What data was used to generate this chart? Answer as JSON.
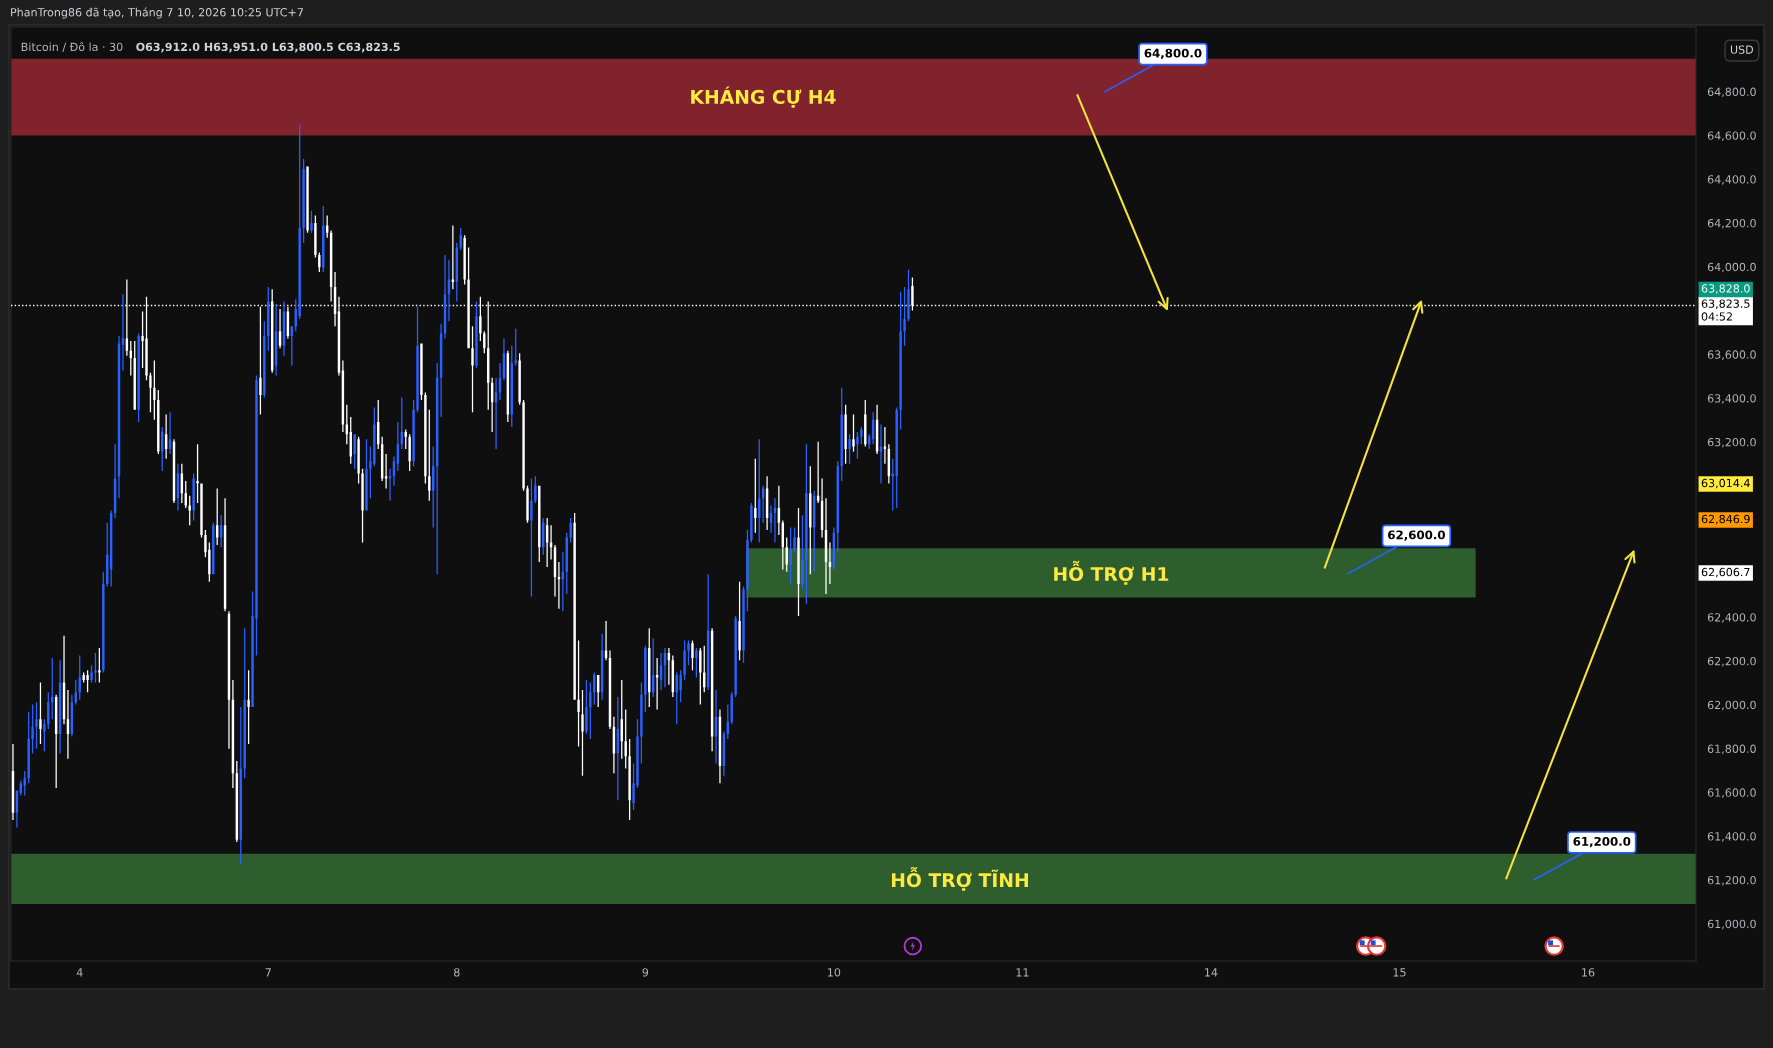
{
  "chart_data": {
    "type": "candlestick",
    "title": "Bitcoin / Đô la · 30",
    "subtitle": "O63,912.0 H63,951.0 L63,800.5 C63,823.5",
    "ylabel": "USD",
    "annotations": [
      "PhanTrong86 đã tạo, Tháng 7 10, 2026 10:25 UTC+7",
      "64,800.0",
      "62,600.0",
      "61,200.0",
      "63,828.0",
      "63,014.4",
      "62,846.9",
      "62,606.7"
    ],
    "ylim": [
      60830,
      65095
    ],
    "yticks": [
      {
        "value": 61000,
        "label": "61,000.0"
      },
      {
        "value": 61200,
        "label": "61,200.0"
      },
      {
        "value": 61400,
        "label": "61,400.0"
      },
      {
        "value": 61600,
        "label": "61,600.0"
      },
      {
        "value": 61800,
        "label": "61,800.0"
      },
      {
        "value": 62000,
        "label": "62,000.0"
      },
      {
        "value": 62200,
        "label": "62,200.0"
      },
      {
        "value": 62400,
        "label": "62,400.0"
      },
      {
        "value": 63200,
        "label": "63,200.0"
      },
      {
        "value": 63400,
        "label": "63,400.0"
      },
      {
        "value": 63600,
        "label": "63,600.0"
      },
      {
        "value": 64000,
        "label": "64,000.0"
      },
      {
        "value": 64200,
        "label": "64,200.0"
      },
      {
        "value": 64400,
        "label": "64,400.0"
      },
      {
        "value": 64600,
        "label": "64,600.0"
      },
      {
        "value": 64800,
        "label": "64,800.0"
      }
    ],
    "bands": [
      {
        "axis": "y",
        "from": 64600,
        "to": 64950,
        "color": "#80232c",
        "label": "KHÁNG CỰ H4"
      },
      {
        "axis": "y",
        "from": 62490,
        "to": 62715,
        "color": "#2e5e2e",
        "label": "HỖ TRỢ H1"
      },
      {
        "axis": "y",
        "from": 61090,
        "to": 61320,
        "color": "#2e5e2e",
        "label": "HỖ TRỢ TĨNH"
      }
    ],
    "ref_lines": [
      {
        "axis": "y",
        "value": 63823.5,
        "label": "63,823.5\n04:52",
        "color": "#ffffff",
        "line_style": "dotted"
      }
    ],
    "categories": [
      null,
      null,
      null,
      null,
      null,
      null,
      null,
      null,
      null,
      null,
      null,
      null,
      null,
      null,
      null,
      null,
      null,
      "4",
      null,
      null,
      null,
      null,
      null,
      null,
      null,
      null,
      null,
      null,
      null,
      null,
      null,
      null,
      null,
      null,
      null,
      null,
      null,
      null,
      null,
      null,
      null,
      null,
      null,
      null,
      null,
      null,
      null,
      null,
      null,
      null,
      null,
      null,
      null,
      null,
      null,
      null,
      null,
      null,
      null,
      null,
      null,
      null,
      null,
      null,
      null,
      "7",
      null,
      null,
      null,
      null,
      null,
      null,
      null,
      null,
      null,
      null,
      null,
      null,
      null,
      null,
      null,
      null,
      null,
      null,
      null,
      null,
      null,
      null,
      null,
      null,
      null,
      null,
      null,
      null,
      null,
      null,
      null,
      null,
      null,
      null,
      null,
      null,
      null,
      null,
      null,
      null,
      null,
      null,
      null,
      null,
      null,
      null,
      null,
      "8",
      null,
      null,
      null,
      null,
      null,
      null,
      null,
      null,
      null,
      null,
      null,
      null,
      null,
      null,
      null,
      null,
      null,
      null,
      null,
      null,
      null,
      null,
      null,
      null,
      null,
      null,
      null,
      null,
      null,
      null,
      null,
      null,
      null,
      null,
      null,
      null,
      null,
      null,
      null,
      null,
      null,
      null,
      null,
      null,
      null,
      null,
      null,
      "9",
      null,
      null,
      null,
      null,
      null,
      null,
      null,
      null,
      null,
      null,
      null,
      null,
      null,
      null,
      null,
      null,
      null,
      null,
      null,
      null,
      null,
      null,
      null,
      null,
      null,
      null,
      null,
      null,
      null,
      null,
      null,
      null,
      null,
      null,
      null,
      null,
      null,
      null,
      null,
      null,
      null,
      null,
      null,
      null,
      null,
      null,
      null,
      "10",
      null,
      null,
      null,
      null,
      null,
      null,
      null,
      null,
      null,
      null,
      null,
      null,
      null,
      null,
      null,
      null,
      null,
      null,
      null,
      null,
      null,
      null,
      null,
      null,
      null,
      null,
      null,
      null,
      null,
      null,
      null,
      null,
      null,
      null,
      null,
      null,
      null,
      null,
      null,
      null,
      null,
      null,
      null,
      null,
      null,
      null,
      null,
      "11",
      null,
      null,
      null,
      null,
      null,
      null,
      null,
      null,
      null,
      null,
      null,
      null,
      null,
      null,
      null,
      null,
      null,
      null,
      null,
      null,
      null,
      null,
      null,
      null,
      null,
      null,
      null,
      null,
      null,
      null,
      null,
      null,
      null,
      null,
      null,
      null,
      null,
      null,
      null,
      null,
      null,
      null,
      null,
      null,
      null,
      null,
      null,
      "14",
      null,
      null,
      null,
      null,
      null,
      null,
      null,
      null,
      null,
      null,
      null,
      null,
      null,
      null,
      null,
      null,
      null,
      null,
      null,
      null,
      null,
      null,
      null,
      null,
      null,
      null,
      null,
      null,
      null,
      null,
      null,
      null,
      null,
      null,
      null,
      null,
      null,
      null,
      null,
      null,
      null,
      null,
      null,
      null,
      null,
      null,
      null,
      "15",
      null,
      null,
      null,
      null,
      null,
      null,
      null,
      null,
      null,
      null,
      null,
      null,
      null,
      null,
      null,
      null,
      null,
      null,
      null,
      null,
      null,
      null,
      null,
      null,
      null,
      null,
      null,
      null,
      null,
      null,
      null,
      null,
      null,
      null,
      null,
      null,
      null,
      null,
      null,
      null,
      null,
      null,
      null,
      null,
      null,
      null,
      null,
      "16",
      null,
      null,
      null,
      null,
      null,
      null,
      null,
      null,
      null,
      null,
      null,
      null,
      null,
      null,
      null,
      null,
      null,
      null,
      null,
      null,
      null,
      null,
      null,
      null,
      null,
      null,
      null
    ],
    "ohlc": [
      [
        61698,
        61821,
        61474,
        61507
      ],
      [
        61507,
        61608,
        61440,
        61608
      ],
      [
        61597,
        61653,
        61586,
        61642
      ],
      [
        61631,
        61698,
        61586,
        61664
      ],
      [
        61664,
        61967,
        61642,
        61844
      ],
      [
        61844,
        62001,
        61777,
        61900
      ],
      [
        61900,
        62012,
        61799,
        61934
      ],
      [
        61934,
        62102,
        61821,
        61889
      ],
      [
        61878,
        61934,
        61788,
        61911
      ],
      [
        61911,
        62057,
        61889,
        62012
      ],
      [
        62012,
        62214,
        61934,
        62035
      ],
      [
        62035,
        62046,
        61620,
        61866
      ],
      [
        61866,
        62203,
        61777,
        62102
      ],
      [
        62102,
        62315,
        61911,
        61934
      ],
      [
        61934,
        62068,
        61754,
        61866
      ],
      [
        61866,
        62046,
        61855,
        62012
      ],
      [
        62012,
        62113,
        62001,
        62057
      ],
      [
        62057,
        62225,
        62023,
        62124
      ],
      [
        62136,
        62147,
        62102,
        62113
      ],
      [
        62136,
        62158,
        62057,
        62113
      ],
      [
        62113,
        62181,
        62102,
        62147
      ],
      [
        62147,
        62237,
        62102,
        62158
      ],
      [
        62158,
        62259,
        62102,
        62147
      ],
      [
        62158,
        62607,
        62147,
        62551
      ],
      [
        62551,
        62831,
        62540,
        62685
      ],
      [
        62618,
        62887,
        62540,
        62876
      ],
      [
        62876,
        63190,
        62853,
        63033
      ],
      [
        63044,
        63684,
        62943,
        63650
      ],
      [
        63644,
        63875,
        63527,
        63673
      ],
      [
        63673,
        63942,
        63594,
        63617
      ],
      [
        63617,
        63661,
        63504,
        63583
      ],
      [
        63583,
        63661,
        63347,
        63347
      ],
      [
        63347,
        63695,
        63291,
        63684
      ],
      [
        63684,
        63796,
        63538,
        63661
      ],
      [
        63673,
        63863,
        63482,
        63504
      ],
      [
        63504,
        63516,
        63336,
        63448
      ],
      [
        63448,
        63572,
        63302,
        63392
      ],
      [
        63392,
        63437,
        63145,
        63157
      ],
      [
        63157,
        63269,
        63067,
        63246
      ],
      [
        63235,
        63325,
        63123,
        63168
      ],
      [
        63168,
        63336,
        63145,
        63213
      ],
      [
        63201,
        63213,
        62921,
        62932
      ],
      [
        62943,
        63101,
        62887,
        63056
      ],
      [
        63056,
        63101,
        62921,
        62966
      ],
      [
        62966,
        63022,
        62899,
        62910
      ],
      [
        62910,
        62955,
        62820,
        62887
      ],
      [
        62887,
        63056,
        62842,
        63033
      ],
      [
        63022,
        63190,
        62921,
        63011
      ],
      [
        63011,
        63011,
        62764,
        62775
      ],
      [
        62775,
        62798,
        62674,
        62697
      ],
      [
        62708,
        62741,
        62562,
        62596
      ],
      [
        62596,
        62831,
        62596,
        62820
      ],
      [
        62820,
        62988,
        62730,
        62764
      ],
      [
        62764,
        62865,
        62719,
        62820
      ],
      [
        62820,
        62943,
        62427,
        62439
      ],
      [
        62416,
        62427,
        61799,
        62023
      ],
      [
        62023,
        62113,
        61620,
        61687
      ],
      [
        61687,
        61743,
        61373,
        61384
      ],
      [
        61384,
        61990,
        61272,
        61709
      ],
      [
        61709,
        62349,
        61664,
        62023
      ],
      [
        62023,
        62158,
        61821,
        61990
      ],
      [
        61990,
        62517,
        61990,
        62405
      ],
      [
        62394,
        63504,
        62225,
        63482
      ],
      [
        63493,
        63818,
        63325,
        63415
      ],
      [
        63415,
        63751,
        63403,
        63684
      ],
      [
        63684,
        63908,
        63617,
        63841
      ],
      [
        63841,
        63897,
        63516,
        63527
      ],
      [
        63549,
        63830,
        63504,
        63706
      ],
      [
        63706,
        63807,
        63628,
        63639
      ],
      [
        63639,
        63841,
        63594,
        63796
      ],
      [
        63796,
        63818,
        63673,
        63684
      ],
      [
        63684,
        63729,
        63549,
        63729
      ],
      [
        63729,
        63852,
        63706,
        63807
      ],
      [
        63774,
        64649,
        63762,
        64177
      ],
      [
        64177,
        64492,
        64110,
        64447
      ],
      [
        64458,
        64458,
        64155,
        64166
      ],
      [
        64166,
        64256,
        64155,
        64200
      ],
      [
        64200,
        64234,
        64043,
        64054
      ],
      [
        64054,
        64065,
        63976,
        63998
      ],
      [
        63998,
        64278,
        63976,
        64189
      ],
      [
        64189,
        64234,
        64133,
        64155
      ],
      [
        64155,
        64166,
        63841,
        63908
      ],
      [
        63908,
        63976,
        63729,
        63785
      ],
      [
        63796,
        63863,
        63504,
        63516
      ],
      [
        63527,
        63572,
        63246,
        63280
      ],
      [
        63280,
        63370,
        63190,
        63235
      ],
      [
        63246,
        63314,
        63101,
        63134
      ],
      [
        63145,
        63235,
        63078,
        63235
      ],
      [
        63213,
        63224,
        63011,
        63056
      ],
      [
        63056,
        63078,
        62741,
        62887
      ],
      [
        62887,
        63213,
        62887,
        63078
      ],
      [
        63078,
        63179,
        62943,
        63112
      ],
      [
        63101,
        63358,
        63089,
        63280
      ],
      [
        63291,
        63392,
        63168,
        63190
      ],
      [
        63190,
        63224,
        63022,
        63033
      ],
      [
        63044,
        63145,
        62988,
        63033
      ],
      [
        63033,
        63078,
        62932,
        63044
      ],
      [
        63044,
        63134,
        63000,
        63112
      ],
      [
        63101,
        63291,
        63067,
        63190
      ],
      [
        63190,
        63403,
        63168,
        63246
      ],
      [
        63246,
        63257,
        63168,
        63224
      ],
      [
        63224,
        63235,
        63067,
        63112
      ],
      [
        63112,
        63392,
        63089,
        63347
      ],
      [
        63347,
        63818,
        63336,
        63639
      ],
      [
        63650,
        63650,
        63392,
        63415
      ],
      [
        63415,
        63426,
        63011,
        63044
      ],
      [
        63044,
        63347,
        62932,
        62977
      ],
      [
        62977,
        63179,
        62809,
        63089
      ],
      [
        63089,
        63561,
        62596,
        63493
      ],
      [
        63493,
        63740,
        63314,
        63695
      ],
      [
        63695,
        64054,
        63673,
        63875
      ],
      [
        63875,
        64032,
        63751,
        63942
      ],
      [
        63942,
        64189,
        63897,
        63931
      ],
      [
        63931,
        64110,
        63841,
        64088
      ],
      [
        64088,
        64177,
        64077,
        64144
      ],
      [
        64133,
        64144,
        63919,
        63942
      ],
      [
        63942,
        64088,
        63628,
        63628
      ],
      [
        63628,
        63729,
        63336,
        63549
      ],
      [
        63549,
        63841,
        63538,
        63774
      ],
      [
        63774,
        63863,
        63661,
        63695
      ],
      [
        63695,
        63706,
        63605,
        63628
      ],
      [
        63628,
        63841,
        63347,
        63471
      ],
      [
        63471,
        63493,
        63246,
        63381
      ],
      [
        63381,
        63493,
        63168,
        63426
      ],
      [
        63426,
        63561,
        63392,
        63493
      ],
      [
        63493,
        63673,
        63482,
        63605
      ],
      [
        63605,
        63617,
        63291,
        63325
      ],
      [
        63325,
        63639,
        63269,
        63561
      ],
      [
        63561,
        63717,
        63549,
        63572
      ],
      [
        63572,
        63605,
        63370,
        63381
      ],
      [
        63381,
        63392,
        62977,
        62988
      ],
      [
        62988,
        63000,
        62831,
        62842
      ],
      [
        62842,
        63033,
        62495,
        62932
      ],
      [
        62932,
        63044,
        62921,
        63000
      ],
      [
        63000,
        63000,
        62652,
        62719
      ],
      [
        62719,
        62853,
        62685,
        62831
      ],
      [
        62820,
        62853,
        62629,
        62741
      ],
      [
        62741,
        62820,
        62663,
        62719
      ],
      [
        62719,
        62730,
        62495,
        62584
      ],
      [
        62584,
        62652,
        62439,
        62573
      ],
      [
        62573,
        62697,
        62427,
        62607
      ],
      [
        62607,
        62786,
        62506,
        62764
      ],
      [
        62764,
        62853,
        62741,
        62831
      ],
      [
        62831,
        62876,
        62023,
        62023
      ],
      [
        62023,
        62293,
        61810,
        61967
      ],
      [
        61956,
        62068,
        61676,
        61878
      ],
      [
        61878,
        62113,
        61866,
        61990
      ],
      [
        61990,
        62102,
        61844,
        62057
      ],
      [
        62057,
        62147,
        62001,
        62136
      ],
      [
        62136,
        62136,
        61990,
        62057
      ],
      [
        62057,
        62326,
        62023,
        62248
      ],
      [
        62248,
        62382,
        62203,
        62214
      ],
      [
        62214,
        62248,
        61889,
        61900
      ],
      [
        61900,
        61945,
        61687,
        61777
      ],
      [
        61777,
        62035,
        61564,
        61889
      ],
      [
        61934,
        62113,
        61754,
        61833
      ],
      [
        61833,
        61979,
        61709,
        61765
      ],
      [
        61765,
        61844,
        61474,
        61564
      ],
      [
        61552,
        61732,
        61519,
        61642
      ],
      [
        61631,
        61934,
        61620,
        61855
      ],
      [
        61855,
        62102,
        61732,
        62046
      ],
      [
        62046,
        62270,
        61967,
        62259
      ],
      [
        62259,
        62349,
        61990,
        62057
      ],
      [
        62057,
        62304,
        62035,
        62136
      ],
      [
        62136,
        62214,
        61979,
        62124
      ],
      [
        62113,
        62237,
        62068,
        62181
      ],
      [
        62181,
        62259,
        62080,
        62237
      ],
      [
        62237,
        62259,
        62091,
        62203
      ],
      [
        62203,
        62225,
        62035,
        62057
      ],
      [
        62057,
        62147,
        61911,
        62136
      ],
      [
        62068,
        62158,
        62012,
        62136
      ],
      [
        62136,
        62293,
        62113,
        62248
      ],
      [
        62248,
        62293,
        62181,
        62281
      ],
      [
        62281,
        62293,
        62158,
        62214
      ],
      [
        62214,
        62259,
        62124,
        62248
      ],
      [
        62248,
        62259,
        62001,
        62147
      ],
      [
        62147,
        62270,
        62057,
        62080
      ],
      [
        62080,
        62596,
        62068,
        62338
      ],
      [
        62338,
        62349,
        61788,
        61855
      ],
      [
        61855,
        62068,
        61732,
        61945
      ],
      [
        61945,
        61979,
        61642,
        61721
      ],
      [
        61721,
        61878,
        61676,
        61866
      ],
      [
        61866,
        62001,
        61844,
        61922
      ],
      [
        61922,
        62057,
        61911,
        62046
      ],
      [
        62046,
        62405,
        62035,
        62394
      ],
      [
        62382,
        62562,
        62203,
        62248
      ],
      [
        62248,
        62540,
        62192,
        62528
      ],
      [
        62528,
        62798,
        62427,
        62753
      ],
      [
        62753,
        62921,
        62741,
        62910
      ],
      [
        62899,
        63123,
        62786,
        62853
      ],
      [
        62853,
        63213,
        62741,
        62943
      ],
      [
        62943,
        63000,
        62831,
        62988
      ],
      [
        62988,
        63044,
        62798,
        62853
      ],
      [
        62831,
        62910,
        62786,
        62876
      ],
      [
        62876,
        62943,
        62741,
        62899
      ],
      [
        62899,
        63000,
        62775,
        62831
      ],
      [
        62831,
        62842,
        62618,
        62719
      ],
      [
        62719,
        62764,
        62607,
        62641
      ],
      [
        62641,
        62809,
        62551,
        62708
      ],
      [
        62708,
        62809,
        62697,
        62764
      ],
      [
        62764,
        62899,
        62405,
        62551
      ],
      [
        62551,
        62865,
        62528,
        62663
      ],
      [
        62663,
        63190,
        62461,
        62966
      ],
      [
        62966,
        63089,
        62596,
        62809
      ],
      [
        62809,
        62977,
        62607,
        62955
      ],
      [
        62955,
        63201,
        62921,
        62932
      ],
      [
        62932,
        63033,
        62764,
        62798
      ],
      [
        62798,
        62943,
        62506,
        62652
      ],
      [
        62652,
        62741,
        62551,
        62629
      ],
      [
        62629,
        62809,
        62618,
        62786
      ],
      [
        62786,
        63112,
        62697,
        63089
      ],
      [
        63089,
        63448,
        63022,
        63325
      ],
      [
        63325,
        63370,
        63101,
        63168
      ],
      [
        63168,
        63235,
        63101,
        63213
      ],
      [
        63213,
        63325,
        63157,
        63179
      ],
      [
        63190,
        63246,
        63123,
        63224
      ],
      [
        63224,
        63269,
        63190,
        63257
      ],
      [
        63325,
        63392,
        63179,
        63190
      ],
      [
        63190,
        63235,
        63168,
        63224
      ],
      [
        63213,
        63336,
        63190,
        63302
      ],
      [
        63302,
        63370,
        63145,
        63157
      ],
      [
        63157,
        63280,
        63011,
        63179
      ],
      [
        63179,
        63269,
        63101,
        63168
      ],
      [
        63168,
        63190,
        63011,
        63044
      ],
      [
        63044,
        63123,
        62887,
        63056
      ],
      [
        63044,
        63358,
        62899,
        63347
      ],
      [
        63347,
        63886,
        63257,
        63706
      ],
      [
        63706,
        63908,
        63639,
        63762
      ],
      [
        63762,
        63987,
        63751,
        63897
      ],
      [
        63912,
        63951,
        63800.5,
        63823.5
      ],
      null,
      null,
      null,
      null,
      null,
      null,
      null,
      null,
      null,
      null,
      null,
      null,
      null,
      null,
      null,
      null,
      null,
      null,
      null,
      null,
      null,
      null,
      null,
      null,
      null,
      null,
      null,
      null,
      null,
      null,
      null,
      null,
      null,
      null,
      null,
      null,
      null,
      null,
      null,
      null,
      null,
      null,
      null,
      null,
      null,
      null,
      null,
      null,
      null,
      null,
      null,
      null,
      null,
      null,
      null,
      null,
      null,
      null,
      null,
      null,
      null,
      null,
      null,
      null,
      null,
      null,
      null,
      null,
      null,
      null,
      null,
      null,
      null,
      null,
      null,
      null,
      null,
      null,
      null,
      null,
      null,
      null,
      null,
      null,
      null,
      null,
      null,
      null,
      null,
      null,
      null,
      null,
      null,
      null,
      null,
      null,
      null,
      null,
      null,
      null,
      null,
      null,
      null,
      null,
      null,
      null,
      null,
      null,
      null,
      null,
      null,
      null,
      null,
      null,
      null,
      null,
      null,
      null,
      null,
      null,
      null,
      null,
      null,
      null,
      null,
      null,
      null,
      null,
      null,
      null,
      null,
      null,
      null,
      null,
      null,
      null,
      null,
      null,
      null,
      null,
      null,
      null,
      null,
      null,
      null,
      null,
      null,
      null,
      null,
      null,
      null,
      null,
      null,
      null,
      null,
      null,
      null,
      null,
      null,
      null,
      null,
      null,
      null,
      null,
      null,
      null,
      null,
      null,
      null,
      null,
      null,
      null,
      null,
      null,
      null,
      null,
      null,
      null,
      null,
      null,
      null,
      null,
      null,
      null,
      null,
      null,
      null,
      null,
      null,
      null,
      null,
      null,
      null,
      null,
      null,
      null,
      null,
      null,
      null
    ],
    "colors": [
      "#ffffff",
      "#2962ff",
      "#2962ff",
      "#2962ff",
      "#2962ff",
      "#2962ff",
      "#2962ff",
      "#ffffff",
      "#2962ff",
      "#2962ff",
      "#2962ff",
      "#ffffff",
      "#2962ff",
      "#ffffff",
      "#ffffff",
      "#2962ff",
      "#2962ff",
      "#2962ff",
      "#ffffff",
      "#ffffff",
      "#2962ff",
      "#2962ff",
      "#ffffff",
      "#2962ff",
      "#2962ff",
      "#2962ff",
      "#2962ff",
      "#2962ff",
      "#2962ff",
      "#ffffff",
      "#ffffff",
      "#ffffff",
      "#2962ff",
      "#ffffff",
      "#ffffff",
      "#ffffff",
      "#ffffff",
      "#ffffff",
      "#2962ff",
      "#ffffff",
      "#2962ff",
      "#ffffff",
      "#2962ff",
      "#ffffff",
      "#ffffff",
      "#ffffff",
      "#2962ff",
      "#ffffff",
      "#ffffff",
      "#ffffff",
      "#ffffff",
      "#2962ff",
      "#ffffff",
      "#2962ff",
      "#ffffff",
      "#ffffff",
      "#ffffff",
      "#ffffff",
      "#2962ff",
      "#2962ff",
      "#ffffff",
      "#2962ff",
      "#2962ff",
      "#ffffff",
      "#2962ff",
      "#2962ff",
      "#ffffff",
      "#2962ff",
      "#ffffff",
      "#2962ff",
      "#ffffff",
      "#2962ff",
      "#2962ff",
      "#2962ff",
      "#2962ff",
      "#ffffff",
      "#2962ff",
      "#ffffff",
      "#ffffff",
      "#2962ff",
      "#ffffff",
      "#ffffff",
      "#ffffff",
      "#ffffff",
      "#ffffff",
      "#ffffff",
      "#ffffff",
      "#2962ff",
      "#ffffff",
      "#ffffff",
      "#2962ff",
      "#2962ff",
      "#2962ff",
      "#ffffff",
      "#ffffff",
      "#ffffff",
      "#2962ff",
      "#2962ff",
      "#2962ff",
      "#2962ff",
      "#ffffff",
      "#ffffff",
      "#2962ff",
      "#2962ff",
      "#ffffff",
      "#ffffff",
      "#ffffff",
      "#2962ff",
      "#2962ff",
      "#2962ff",
      "#2962ff",
      "#2962ff",
      "#ffffff",
      "#2962ff",
      "#2962ff",
      "#ffffff",
      "#ffffff",
      "#ffffff",
      "#2962ff",
      "#ffffff",
      "#ffffff",
      "#ffffff",
      "#ffffff",
      "#2962ff",
      "#2962ff",
      "#2962ff",
      "#ffffff",
      "#2962ff",
      "#2962ff",
      "#ffffff",
      "#ffffff",
      "#ffffff",
      "#2962ff",
      "#2962ff",
      "#ffffff",
      "#2962ff",
      "#ffffff",
      "#ffffff",
      "#ffffff",
      "#ffffff",
      "#2962ff",
      "#2962ff",
      "#2962ff",
      "#ffffff",
      "#ffffff",
      "#ffffff",
      "#2962ff",
      "#2962ff",
      "#2962ff",
      "#ffffff",
      "#2962ff",
      "#ffffff",
      "#ffffff",
      "#ffffff",
      "#2962ff",
      "#ffffff",
      "#ffffff",
      "#ffffff",
      "#2962ff",
      "#2962ff",
      "#2962ff",
      "#2962ff",
      "#ffffff",
      "#2962ff",
      "#ffffff",
      "#2962ff",
      "#2962ff",
      "#ffffff",
      "#ffffff",
      "#2962ff",
      "#2962ff",
      "#2962ff",
      "#2962ff",
      "#ffffff",
      "#2962ff",
      "#ffffff",
      "#ffffff",
      "#2962ff",
      "#ffffff",
      "#2962ff",
      "#ffffff",
      "#2962ff",
      "#2962ff",
      "#2962ff",
      "#2962ff",
      "#ffffff",
      "#2962ff",
      "#2962ff",
      "#2962ff",
      "#ffffff",
      "#2962ff",
      "#2962ff",
      "#ffffff",
      "#2962ff",
      "#2962ff",
      "#ffffff",
      "#ffffff",
      "#ffffff",
      "#2962ff",
      "#2962ff",
      "#ffffff",
      "#2962ff",
      "#2962ff",
      "#ffffff",
      "#2962ff",
      "#ffffff",
      "#ffffff",
      "#ffffff",
      "#ffffff",
      "#2962ff",
      "#2962ff",
      "#2962ff",
      "#ffffff",
      "#2962ff",
      "#ffffff",
      "#2962ff",
      "#2962ff",
      "#ffffff",
      "#2962ff",
      "#2962ff",
      "#ffffff",
      "#2962ff",
      "#ffffff",
      "#ffffff",
      "#2962ff",
      "#2962ff",
      "#2962ff",
      "#2962ff",
      "#2962ff",
      "#ffffff",
      null,
      null,
      null,
      null,
      null,
      null,
      null,
      null,
      null,
      null,
      null,
      null,
      null,
      null,
      null,
      null,
      null,
      null,
      null,
      null,
      null,
      null,
      null,
      null,
      null,
      null,
      null,
      null,
      null,
      null,
      null,
      null,
      null,
      null,
      null,
      null,
      null,
      null,
      null,
      null,
      null,
      null,
      null,
      null,
      null,
      null,
      null,
      null,
      null,
      null,
      null,
      null,
      null,
      null,
      null,
      null,
      null,
      null,
      null,
      null,
      null,
      null,
      null,
      null,
      null,
      null,
      null,
      null,
      null,
      null,
      null,
      null,
      null,
      null,
      null,
      null,
      null,
      null,
      null,
      null,
      null,
      null,
      null,
      null,
      null,
      null,
      null,
      null,
      null,
      null,
      null,
      null,
      null,
      null,
      null,
      null,
      null,
      null,
      null,
      null,
      null,
      null,
      null,
      null,
      null,
      null,
      null,
      null,
      null,
      null,
      null,
      null,
      null,
      null,
      null,
      null,
      null,
      null,
      null,
      null,
      null,
      null,
      null,
      null,
      null,
      null,
      null,
      null,
      null,
      null,
      null,
      null,
      null,
      null,
      null,
      null,
      null,
      null,
      null,
      null,
      null,
      null,
      null,
      null,
      null,
      null,
      null,
      null,
      null,
      null,
      null,
      null,
      null,
      null,
      null,
      null,
      null,
      null,
      null,
      null,
      null,
      null,
      null,
      null,
      null,
      null,
      null,
      null,
      null,
      null,
      null,
      null,
      null,
      null,
      null,
      null,
      null,
      null,
      null,
      null,
      null,
      null,
      null,
      null,
      null,
      null,
      null,
      null,
      null,
      null,
      null,
      null,
      null,
      null,
      null,
      null,
      null,
      null,
      null
    ]
  }
}
